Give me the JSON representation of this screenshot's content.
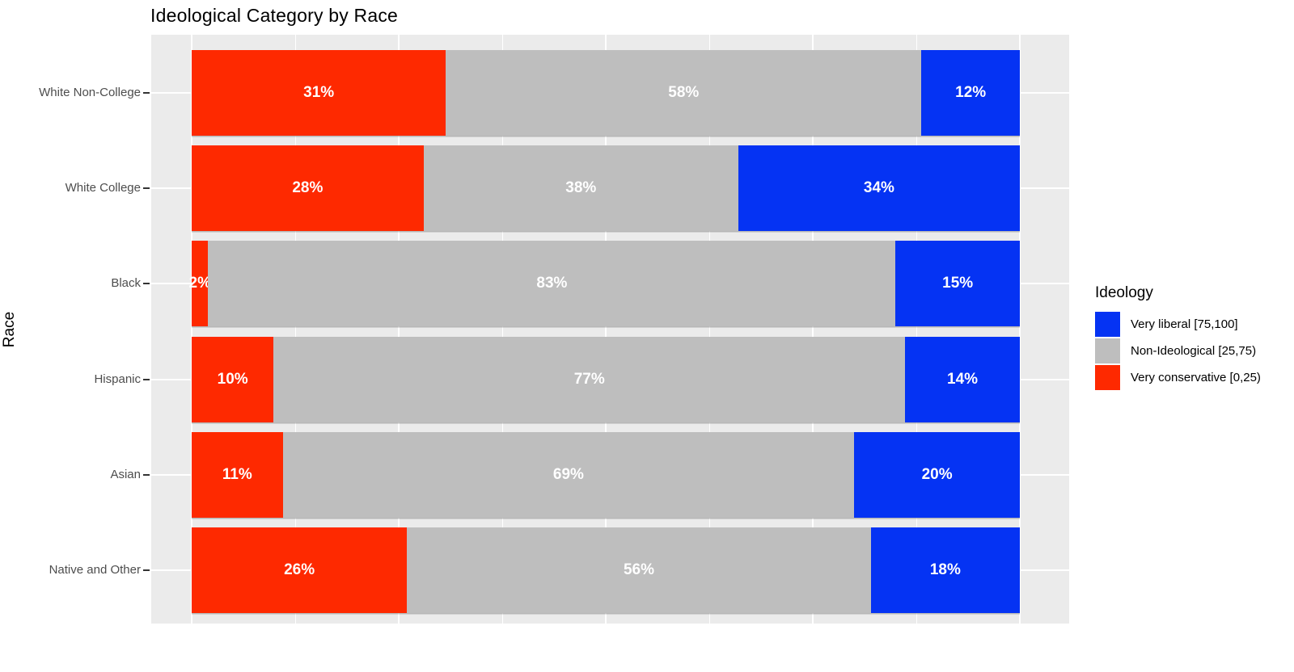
{
  "title": "Ideological Category by Race",
  "y_axis_title": "Race",
  "legend": {
    "title": "Ideology",
    "items": [
      {
        "label": "Very liberal [75,100]",
        "color": "#0533F3"
      },
      {
        "label": "Non-Ideological [25,75)",
        "color": "#BEBEBE"
      },
      {
        "label": "Very conservative [0,25)",
        "color": "#FE2900"
      }
    ]
  },
  "chart_data": {
    "type": "bar",
    "orientation": "horizontal",
    "stacked": true,
    "title": "Ideological Category by Race",
    "xlabel": "",
    "ylabel": "Race",
    "xlim": [
      0,
      100
    ],
    "x_major_breaks": [
      0,
      25,
      50,
      75,
      100
    ],
    "x_minor_breaks": [
      12.5,
      37.5,
      62.5,
      87.5
    ],
    "grid": true,
    "legend_position": "right",
    "legend_title": "Ideology",
    "value_format": "percent",
    "categories": [
      "White Non-College",
      "White College",
      "Black",
      "Hispanic",
      "Asian",
      "Native and Other"
    ],
    "series": [
      {
        "name": "Very conservative [0,25)",
        "color": "#FE2900",
        "values": [
          31,
          28,
          2,
          10,
          11,
          26
        ]
      },
      {
        "name": "Non-Ideological [25,75)",
        "color": "#BEBEBE",
        "values": [
          58,
          38,
          83,
          77,
          69,
          56
        ]
      },
      {
        "name": "Very liberal [75,100]",
        "color": "#0533F3",
        "values": [
          12,
          34,
          15,
          14,
          20,
          18
        ]
      }
    ]
  },
  "style": {
    "panel_background": "#EBEBEB",
    "gridline_color": "#FFFFFF",
    "axis_text_color": "#4D4D4D",
    "bar_label_color": "#FFFFFF"
  }
}
